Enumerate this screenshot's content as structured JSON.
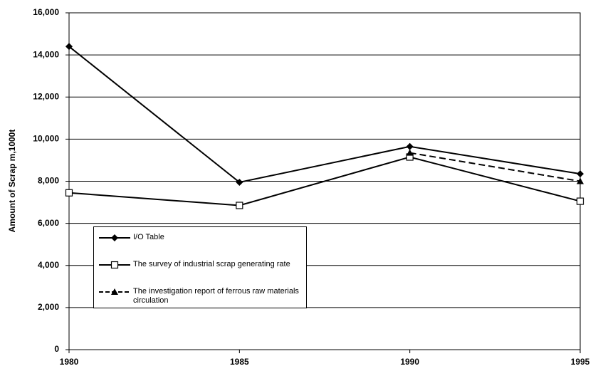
{
  "chart_data": {
    "type": "line",
    "ylabel": "Amount of Scrap m,1000t",
    "x": [
      1980,
      1985,
      1990,
      1995
    ],
    "xlim": [
      1980,
      1995
    ],
    "xticks": [
      1980,
      1985,
      1990,
      1995
    ],
    "ylim": [
      0,
      16000
    ],
    "yticks": [
      0,
      {
        "value": 2000,
        "label": "2,000"
      },
      {
        "value": 4000,
        "label": "4,000"
      },
      {
        "value": 6000,
        "label": "6,000"
      },
      {
        "value": 8000,
        "label": "8,000"
      },
      {
        "value": 10000,
        "label": "10,000"
      },
      {
        "value": 12000,
        "label": "12,000"
      },
      {
        "value": 14000,
        "label": "14,000"
      },
      {
        "value": 16000,
        "label": "16,000"
      }
    ],
    "grid": true,
    "series": [
      {
        "name": "I/O Table",
        "color": "#000000",
        "marker": "diamond",
        "dashed": false,
        "values": [
          14400,
          7950,
          9650,
          8350
        ]
      },
      {
        "name": "The survey of industrial scrap generating rate",
        "color": "#000000",
        "marker": "square",
        "dashed": false,
        "values": [
          7450,
          6850,
          9150,
          7050
        ]
      },
      {
        "name": "The investigation report of ferrous raw materials circulation",
        "color": "#000000",
        "marker": "triangle",
        "dashed": true,
        "values": [
          null,
          null,
          9350,
          8000
        ]
      }
    ]
  }
}
